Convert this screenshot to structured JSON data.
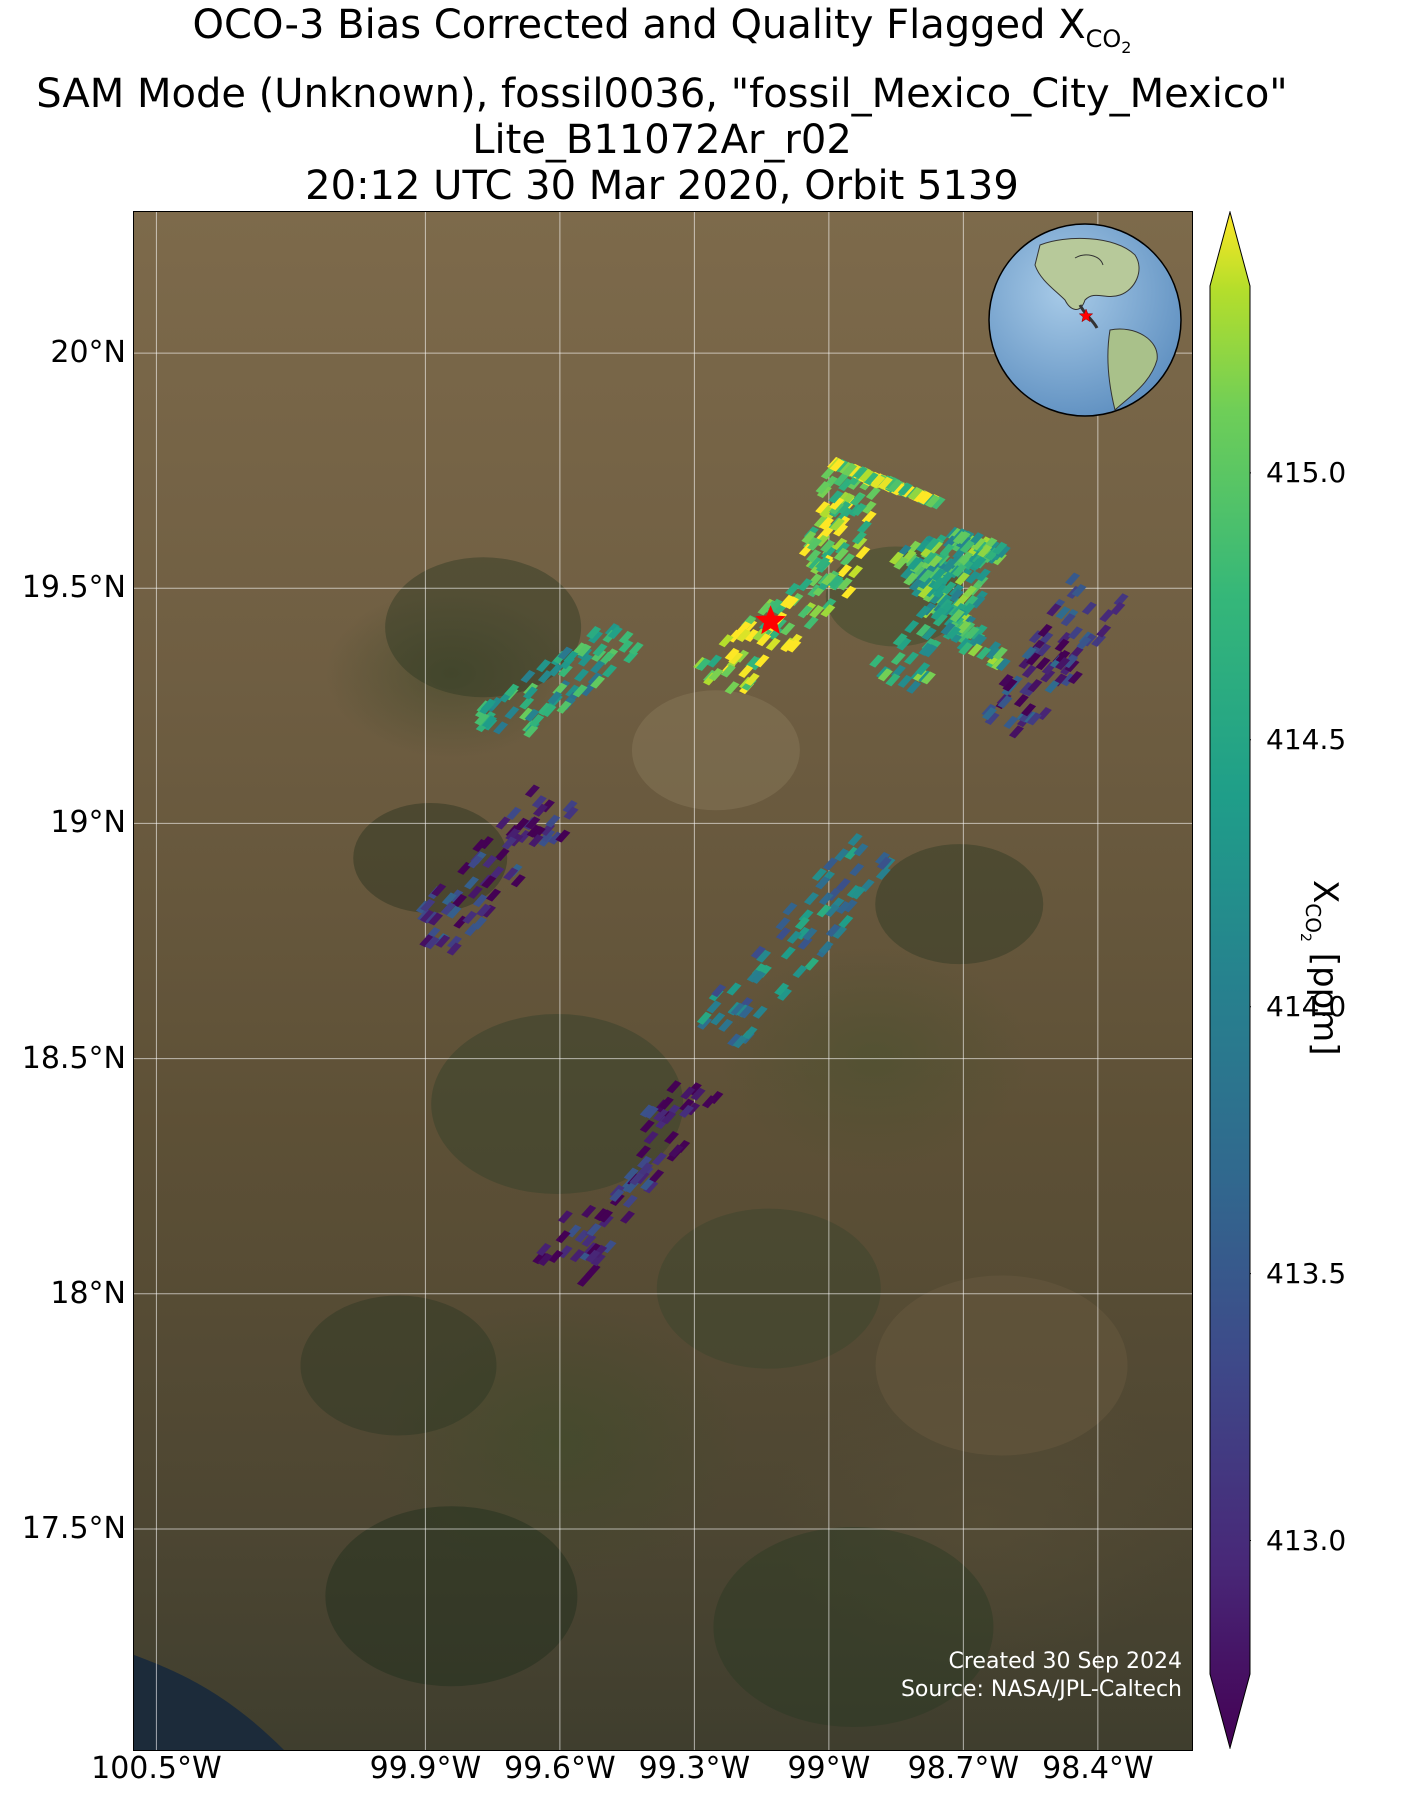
{
  "title": {
    "line1_prefix": "OCO-3 Bias Corrected and Quality Flagged X",
    "line1_sub": "CO",
    "line1_subsub": "2",
    "line2": "SAM Mode (Unknown), fossil0036, \"fossil_Mexico_City_Mexico\"",
    "line3": "Lite_B11072Ar_r02",
    "line4": "20:12 UTC 30 Mar 2020, Orbit 5139"
  },
  "map": {
    "lat_ticks": [
      {
        "label": "20°N",
        "lat": 20.0
      },
      {
        "label": "19.5°N",
        "lat": 19.5
      },
      {
        "label": "19°N",
        "lat": 19.0
      },
      {
        "label": "18.5°N",
        "lat": 18.5
      },
      {
        "label": "18°N",
        "lat": 18.0
      },
      {
        "label": "17.5°N",
        "lat": 17.5
      }
    ],
    "lon_ticks": [
      {
        "label": "100.5°W",
        "lon": -100.5
      },
      {
        "label": "99.9°W",
        "lon": -99.9
      },
      {
        "label": "99.6°W",
        "lon": -99.6
      },
      {
        "label": "99.3°W",
        "lon": -99.3
      },
      {
        "label": "99°W",
        "lon": -99.0
      },
      {
        "label": "98.7°W",
        "lon": -98.7
      },
      {
        "label": "98.4°W",
        "lon": -98.4
      }
    ],
    "target_marker": {
      "name": "fossil_Mexico_City_Mexico",
      "lon": -99.13,
      "lat": 19.43,
      "color": "#ff0000"
    },
    "background": "satellite imagery"
  },
  "chart_data": {
    "type": "heatmap",
    "xlim": [
      -100.55,
      -98.19
    ],
    "ylim": [
      17.03,
      20.3
    ],
    "color_variable": "XCO2 [ppm]",
    "colormap": "viridis",
    "clim": [
      412.75,
      415.35
    ],
    "grid": true,
    "swaths": [
      {
        "lon": [
          -99.25,
          -99.0,
          -98.95,
          -98.8
        ],
        "lat": [
          19.3,
          19.52,
          19.75,
          19.7
        ],
        "xco2": 415.1
      },
      {
        "lon": [
          -98.85,
          -98.65,
          -98.8,
          -98.65
        ],
        "lat": [
          19.3,
          19.6,
          19.55,
          19.35
        ],
        "xco2": 414.6
      },
      {
        "lon": [
          -98.6,
          -98.4
        ],
        "lat": [
          19.2,
          19.5
        ],
        "xco2": 413.2
      },
      {
        "lon": [
          -99.75,
          -99.45
        ],
        "lat": [
          19.2,
          19.4
        ],
        "xco2": 414.4
      },
      {
        "lon": [
          -99.9,
          -99.6
        ],
        "lat": [
          18.75,
          19.05
        ],
        "xco2": 413.1
      },
      {
        "lon": [
          -99.25,
          -98.9
        ],
        "lat": [
          18.55,
          18.95
        ],
        "xco2": 414.0
      },
      {
        "lon": [
          -99.6,
          -99.3
        ],
        "lat": [
          18.05,
          18.45
        ],
        "xco2": 413.0
      }
    ],
    "colorbar_ticks": [
      {
        "label": "413.0",
        "value": 413.0
      },
      {
        "label": "413.5",
        "value": 413.5
      },
      {
        "label": "414.0",
        "value": 414.0
      },
      {
        "label": "414.5",
        "value": 414.5
      },
      {
        "label": "415.0",
        "value": 415.0
      }
    ]
  },
  "colorbar": {
    "label_prefix": "X",
    "label_sub": "CO",
    "label_subsub": "2",
    "label_suffix": " [ppm]"
  },
  "credit": {
    "line1": "Created 30 Sep 2024",
    "line2": "Source: NASA/JPL-Caltech"
  },
  "inset": {
    "type": "globe",
    "marker_color": "#ff0000"
  }
}
